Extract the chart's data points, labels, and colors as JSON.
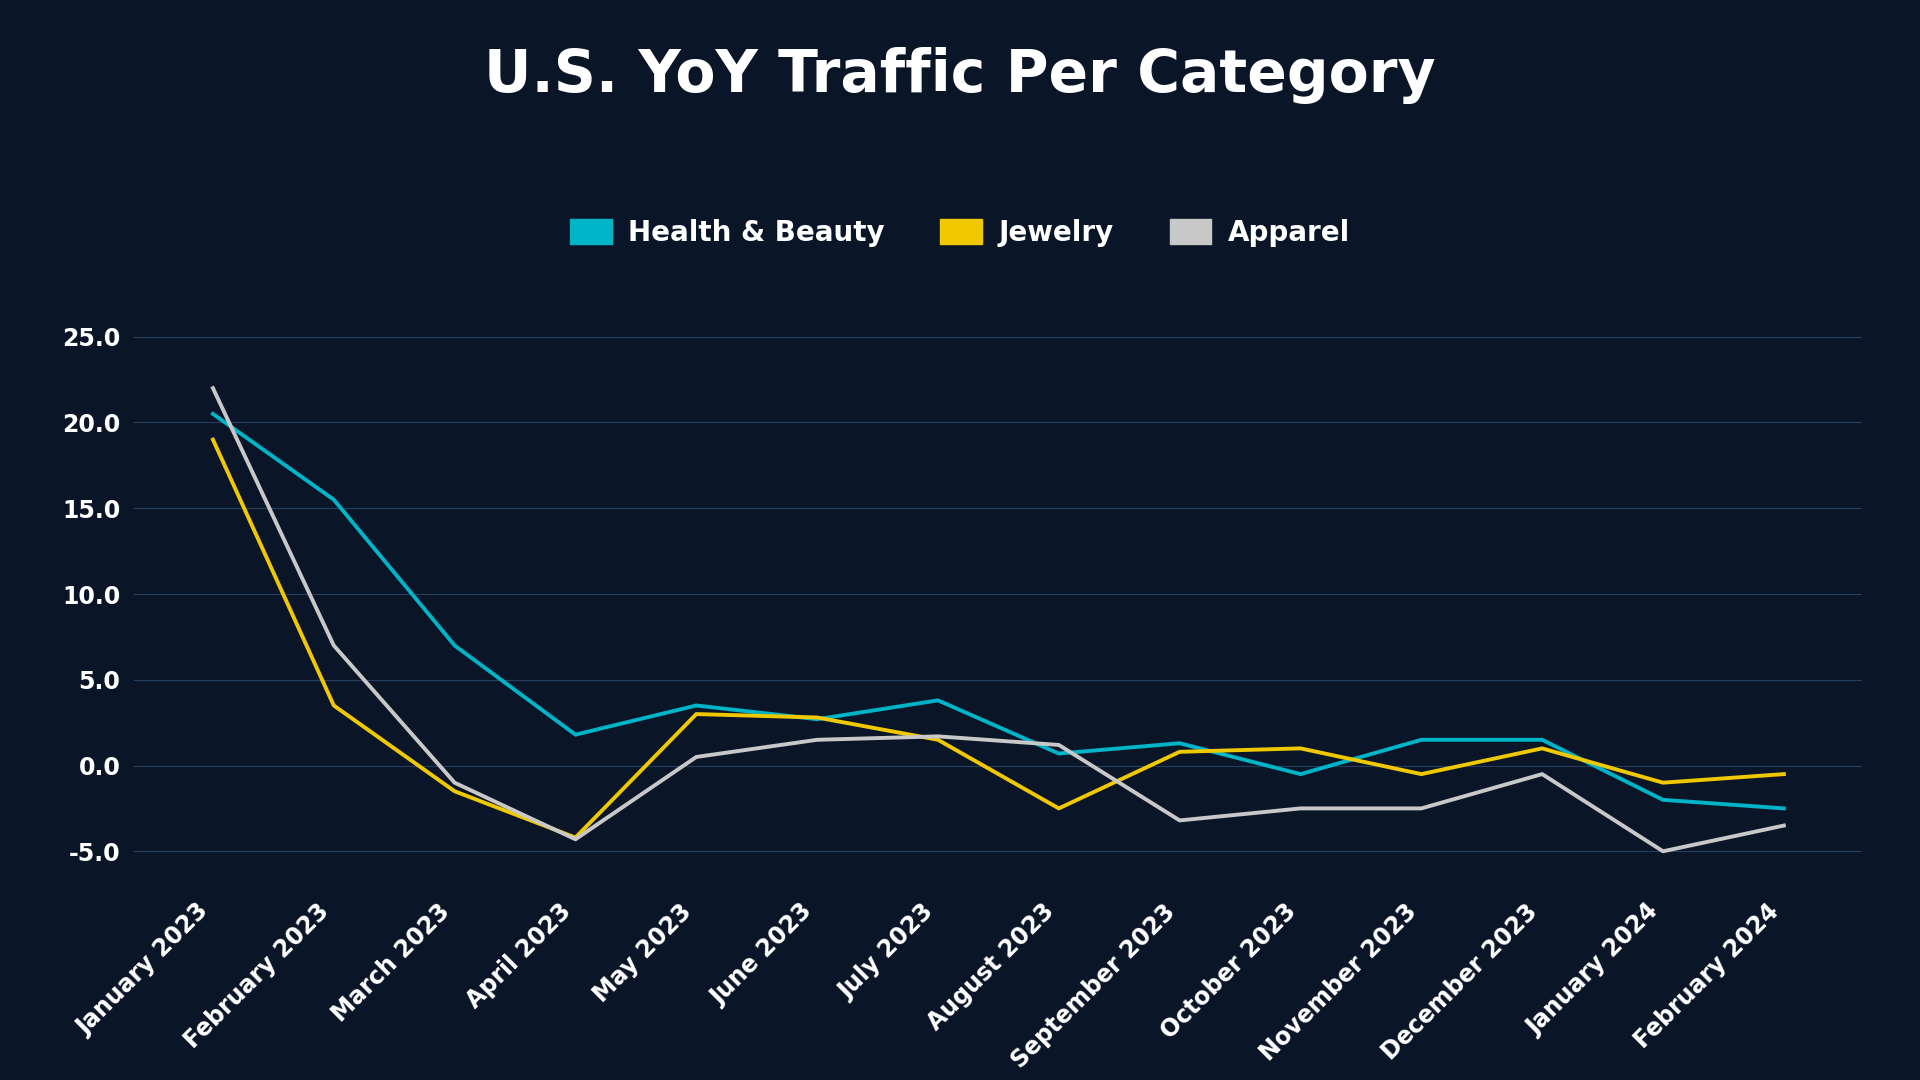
{
  "title": "U.S. YoY Traffic Per Category",
  "background_color": "#0a1628",
  "grid_color": "#253d5e",
  "text_color": "#ffffff",
  "categories": [
    "January 2023",
    "February 2023",
    "March 2023",
    "April 2023",
    "May 2023",
    "June 2023",
    "July 2023",
    "August 2023",
    "September 2023",
    "October 2023",
    "November 2023",
    "December 2023",
    "January 2024",
    "February 2024"
  ],
  "series": [
    {
      "name": "Health & Beauty",
      "color": "#00b4c8",
      "values": [
        20.5,
        15.5,
        7.0,
        1.8,
        3.5,
        2.7,
        3.8,
        0.7,
        1.3,
        -0.5,
        1.5,
        1.5,
        -2.0,
        -2.5
      ]
    },
    {
      "name": "Jewelry",
      "color": "#f0c800",
      "values": [
        19.0,
        3.5,
        -1.5,
        -4.2,
        3.0,
        2.8,
        1.5,
        -2.5,
        0.8,
        1.0,
        -0.5,
        1.0,
        -1.0,
        -0.5
      ]
    },
    {
      "name": "Apparel",
      "color": "#c8c8c8",
      "values": [
        22.0,
        7.0,
        -1.0,
        -4.3,
        0.5,
        1.5,
        1.7,
        1.2,
        -3.2,
        -2.5,
        -2.5,
        -0.5,
        -5.0,
        -3.5
      ]
    }
  ],
  "ylim": [
    -7,
    27
  ],
  "yticks": [
    -5.0,
    0.0,
    5.0,
    10.0,
    15.0,
    20.0,
    25.0
  ],
  "legend_labels": [
    "Health & Beauty",
    "Jewelry",
    "Apparel"
  ],
  "legend_colors": [
    "#00b4c8",
    "#f0c800",
    "#c8c8c8"
  ],
  "title_fontsize": 42,
  "tick_fontsize": 17,
  "legend_fontsize": 20,
  "linewidth": 2.8
}
